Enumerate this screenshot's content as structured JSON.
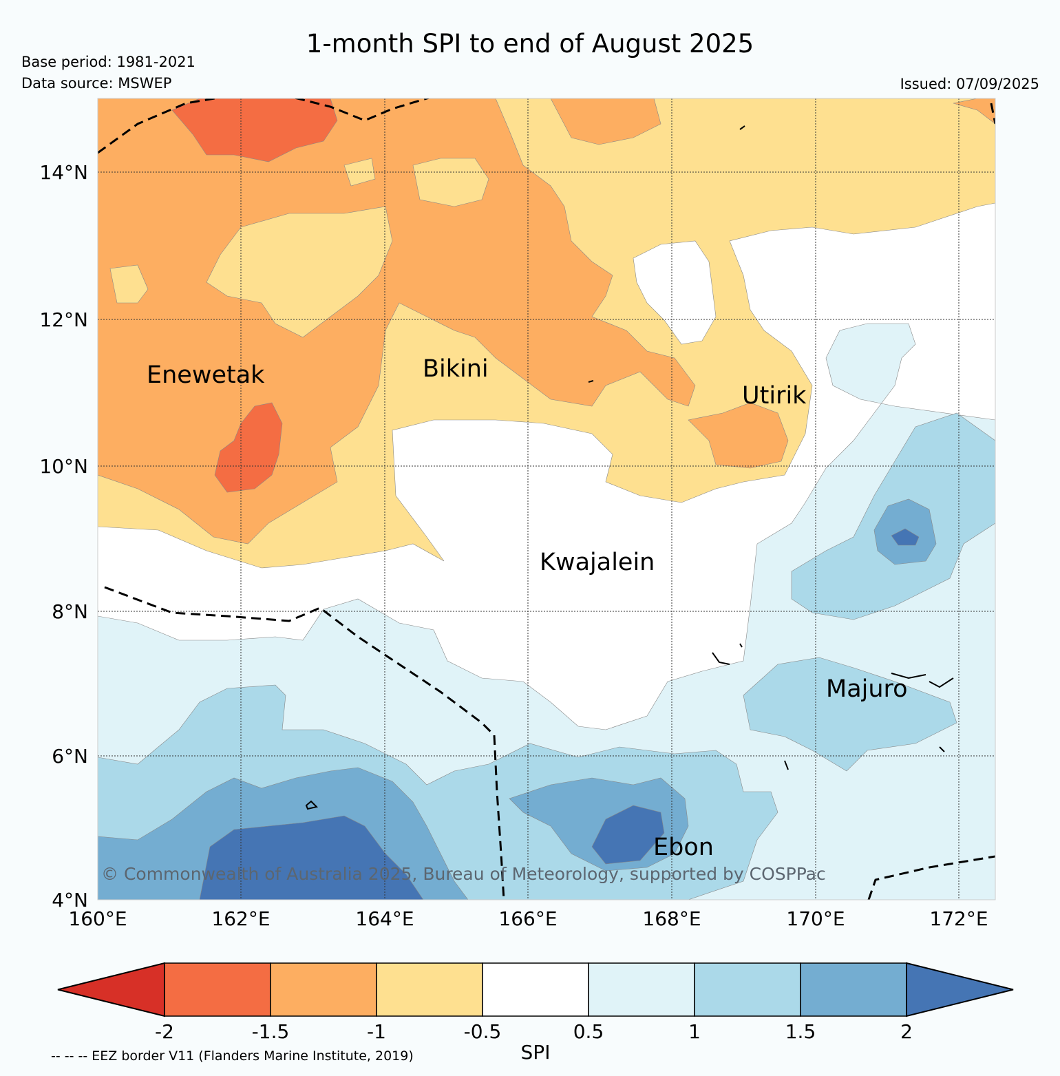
{
  "header": {
    "title": "1-month SPI to end of August 2025",
    "base_period": "Base period: 1981-2021",
    "data_source": "Data source: MSWEP",
    "issued": "Issued: 07/09/2025"
  },
  "map": {
    "lat_labels": [
      "14°N",
      "12°N",
      "10°N",
      "8°N",
      "6°N",
      "4°N"
    ],
    "lon_labels": [
      "160°E",
      "162°E",
      "164°E",
      "166°E",
      "168°E",
      "170°E",
      "172°E"
    ],
    "places": [
      "Enewetak",
      "Bikini",
      "Utirik",
      "Kwajalein",
      "Majuro",
      "Ebon"
    ],
    "copyright": "© Commonwealth of Australia 2025, Bureau of Meteorology, supported by COSPPac"
  },
  "legend": {
    "colorbar_label": "SPI",
    "tick_values": [
      "-2",
      "-1.5",
      "-1",
      "-0.5",
      "0.5",
      "1",
      "1.5",
      "2"
    ],
    "colors": [
      "#d73027",
      "#f46d43",
      "#fdae61",
      "#fee090",
      "#ffffff",
      "#e0f3f8",
      "#abd9e9",
      "#74add1",
      "#4575b4"
    ],
    "eez_note": "-- -- -- EEZ border V11 (Flanders Marine Institute, 2019)"
  }
}
